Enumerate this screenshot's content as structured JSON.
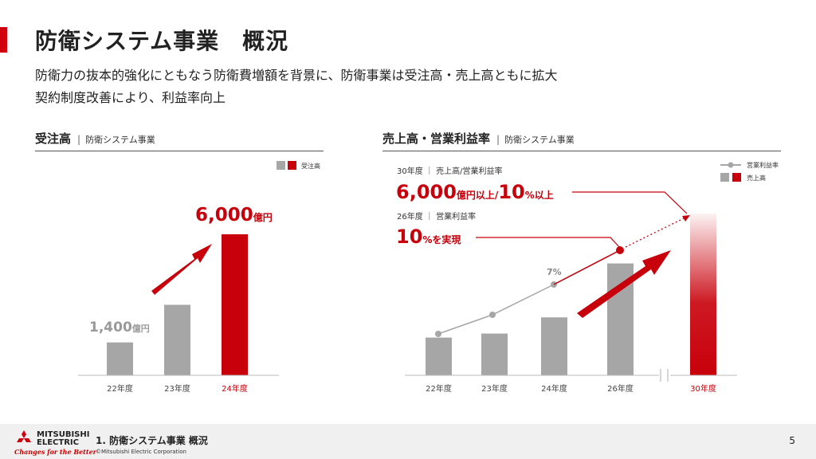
{
  "header": {
    "title": "防衛システム事業　概況",
    "subtitle1": "防衛力の抜本的強化にともなう防衛費増額を背景に、防衛事業は受注高・売上高ともに拡大",
    "subtitle2": "契約制度改善により、利益率向上"
  },
  "left": {
    "section_title": "受注高",
    "section_sep": "|",
    "section_sub": "防衛システム事業",
    "legend": "受注高",
    "label_first_num": "1,400",
    "label_first_unit": "億円",
    "label_last_num": "6,000",
    "label_last_unit": "億円"
  },
  "right": {
    "section_title": "売上高・営業利益率",
    "section_sep": "|",
    "section_sub": "防衛システム事業",
    "legend_line": "営業利益率",
    "legend_bar": "売上高",
    "ann1_head": "30年度 ｜ 売上高/営業利益率",
    "ann1_big1": "6,000",
    "ann1_unit1": "億円以上/",
    "ann1_big2": "10",
    "ann1_unit2": "%以上",
    "ann2_head": "26年度 ｜ 営業利益率",
    "ann2_big": "10",
    "ann2_unit": "%を実現",
    "pct_label": "7%"
  },
  "chart_data": [
    {
      "type": "bar",
      "title": "受注高 | 防衛システム事業",
      "categories": [
        "22年度",
        "23年度",
        "24年度"
      ],
      "series": [
        {
          "name": "受注高",
          "values": [
            1400,
            3000,
            6000
          ]
        }
      ],
      "unit": "億円",
      "highlight": "24年度",
      "colors": {
        "base": "#a6a6a6",
        "highlight": "#c8000b"
      }
    },
    {
      "type": "bar",
      "title": "売上高・営業利益率 | 防衛システム事業",
      "categories": [
        "22年度",
        "23年度",
        "24年度",
        "26年度",
        "30年度"
      ],
      "series": [
        {
          "name": "売上高",
          "values": [
            1400,
            1550,
            2150,
            4150,
            6000
          ]
        },
        {
          "name": "営業利益率",
          "type": "line",
          "values": [
            null,
            null,
            7,
            10,
            null
          ],
          "note": "22-23年度 markers unlabeled"
        }
      ],
      "axis_break_between": [
        "26年度",
        "30年度"
      ],
      "highlight": "30年度",
      "colors": {
        "base": "#a6a6a6",
        "highlight": "#c8000b",
        "line": "#a6a6a6",
        "target": "#c8000b"
      }
    }
  ],
  "footer": {
    "brand_line1": "MITSUBISHI",
    "brand_line2": "ELECTRIC",
    "tagline": "Changes for the Better",
    "title": "1. 防衛システム事業 概況",
    "copyright": "©Mitsubishi Electric Corporation",
    "page": "5"
  }
}
